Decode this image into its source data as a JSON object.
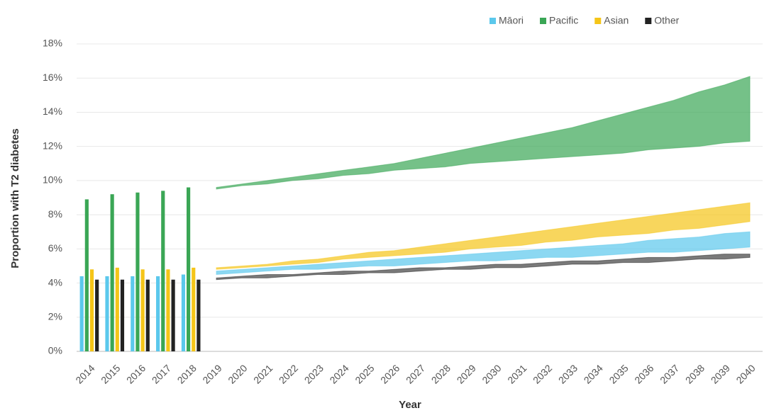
{
  "chart_data": {
    "type": "bar_band",
    "x_label": "Year",
    "y_label": "Proportion with T2 diabetes",
    "categories": [
      "2014",
      "2015",
      "2016",
      "2017",
      "2018",
      "2019",
      "2020",
      "2021",
      "2022",
      "2023",
      "2024",
      "2025",
      "2026",
      "2027",
      "2028",
      "2029",
      "2030",
      "2031",
      "2032",
      "2033",
      "2034",
      "2035",
      "2036",
      "2037",
      "2038",
      "2039",
      "2040"
    ],
    "ylim": [
      0,
      18
    ],
    "yticks": [
      {
        "value": 0,
        "label": "0%"
      },
      {
        "value": 2,
        "label": "2%"
      },
      {
        "value": 4,
        "label": "4%"
      },
      {
        "value": 6,
        "label": "6%"
      },
      {
        "value": 8,
        "label": "8%"
      },
      {
        "value": 10,
        "label": "10%"
      },
      {
        "value": 12,
        "label": "12%"
      },
      {
        "value": 14,
        "label": "14%"
      },
      {
        "value": 16,
        "label": "16%"
      },
      {
        "value": 18,
        "label": "18%"
      }
    ],
    "grid": true,
    "legend": "top-right",
    "series": [
      {
        "name": "Māori",
        "color": "#5bc8ec",
        "values": [
          4.4,
          4.4,
          4.4,
          4.4,
          4.5,
          null,
          null,
          null,
          null,
          null,
          null,
          null,
          null,
          null,
          null,
          null,
          null,
          null,
          null,
          null,
          null,
          null,
          null,
          null,
          null,
          null,
          null
        ],
        "lower": [
          null,
          null,
          null,
          null,
          null,
          4.5,
          4.6,
          4.7,
          4.8,
          4.8,
          4.9,
          5.0,
          5.0,
          5.1,
          5.2,
          5.3,
          5.3,
          5.4,
          5.5,
          5.5,
          5.6,
          5.7,
          5.8,
          5.8,
          5.9,
          6.0,
          6.1
        ],
        "upper": [
          null,
          null,
          null,
          null,
          null,
          4.7,
          4.8,
          4.9,
          5.0,
          5.1,
          5.2,
          5.3,
          5.4,
          5.5,
          5.6,
          5.7,
          5.8,
          5.9,
          6.0,
          6.1,
          6.2,
          6.3,
          6.5,
          6.6,
          6.7,
          6.9,
          7.0
        ]
      },
      {
        "name": "Pacific",
        "color": "#3aa655",
        "values": [
          8.9,
          9.2,
          9.3,
          9.4,
          9.6,
          null,
          null,
          null,
          null,
          null,
          null,
          null,
          null,
          null,
          null,
          null,
          null,
          null,
          null,
          null,
          null,
          null,
          null,
          null,
          null,
          null,
          null
        ],
        "lower": [
          null,
          null,
          null,
          null,
          null,
          9.5,
          9.7,
          9.8,
          10.0,
          10.1,
          10.3,
          10.4,
          10.6,
          10.7,
          10.8,
          11.0,
          11.1,
          11.2,
          11.3,
          11.4,
          11.5,
          11.6,
          11.8,
          11.9,
          12.0,
          12.2,
          12.3
        ],
        "upper": [
          null,
          null,
          null,
          null,
          null,
          9.6,
          9.8,
          10.0,
          10.2,
          10.4,
          10.6,
          10.8,
          11.0,
          11.3,
          11.6,
          11.9,
          12.2,
          12.5,
          12.8,
          13.1,
          13.5,
          13.9,
          14.3,
          14.7,
          15.2,
          15.6,
          16.1
        ]
      },
      {
        "name": "Asian",
        "color": "#f5c518",
        "values": [
          4.8,
          4.9,
          4.8,
          4.8,
          4.9,
          null,
          null,
          null,
          null,
          null,
          null,
          null,
          null,
          null,
          null,
          null,
          null,
          null,
          null,
          null,
          null,
          null,
          null,
          null,
          null,
          null,
          null
        ],
        "lower": [
          null,
          null,
          null,
          null,
          null,
          4.8,
          4.9,
          5.0,
          5.1,
          5.2,
          5.4,
          5.5,
          5.6,
          5.7,
          5.8,
          6.0,
          6.1,
          6.2,
          6.4,
          6.5,
          6.7,
          6.8,
          6.9,
          7.1,
          7.2,
          7.4,
          7.6
        ],
        "upper": [
          null,
          null,
          null,
          null,
          null,
          4.9,
          5.0,
          5.1,
          5.3,
          5.4,
          5.6,
          5.8,
          5.9,
          6.1,
          6.3,
          6.5,
          6.7,
          6.9,
          7.1,
          7.3,
          7.5,
          7.7,
          7.9,
          8.1,
          8.3,
          8.5,
          8.7
        ]
      },
      {
        "name": "Other",
        "color": "#222222",
        "values": [
          4.2,
          4.2,
          4.2,
          4.2,
          4.2,
          null,
          null,
          null,
          null,
          null,
          null,
          null,
          null,
          null,
          null,
          null,
          null,
          null,
          null,
          null,
          null,
          null,
          null,
          null,
          null,
          null,
          null
        ],
        "lower": [
          null,
          null,
          null,
          null,
          null,
          4.2,
          4.3,
          4.3,
          4.4,
          4.5,
          4.5,
          4.6,
          4.6,
          4.7,
          4.8,
          4.8,
          4.9,
          4.9,
          5.0,
          5.1,
          5.1,
          5.2,
          5.2,
          5.3,
          5.4,
          5.4,
          5.5
        ],
        "upper": [
          null,
          null,
          null,
          null,
          null,
          4.3,
          4.4,
          4.5,
          4.5,
          4.6,
          4.7,
          4.7,
          4.8,
          4.9,
          4.9,
          5.0,
          5.1,
          5.1,
          5.2,
          5.3,
          5.3,
          5.4,
          5.5,
          5.5,
          5.6,
          5.7,
          5.7
        ]
      }
    ]
  }
}
